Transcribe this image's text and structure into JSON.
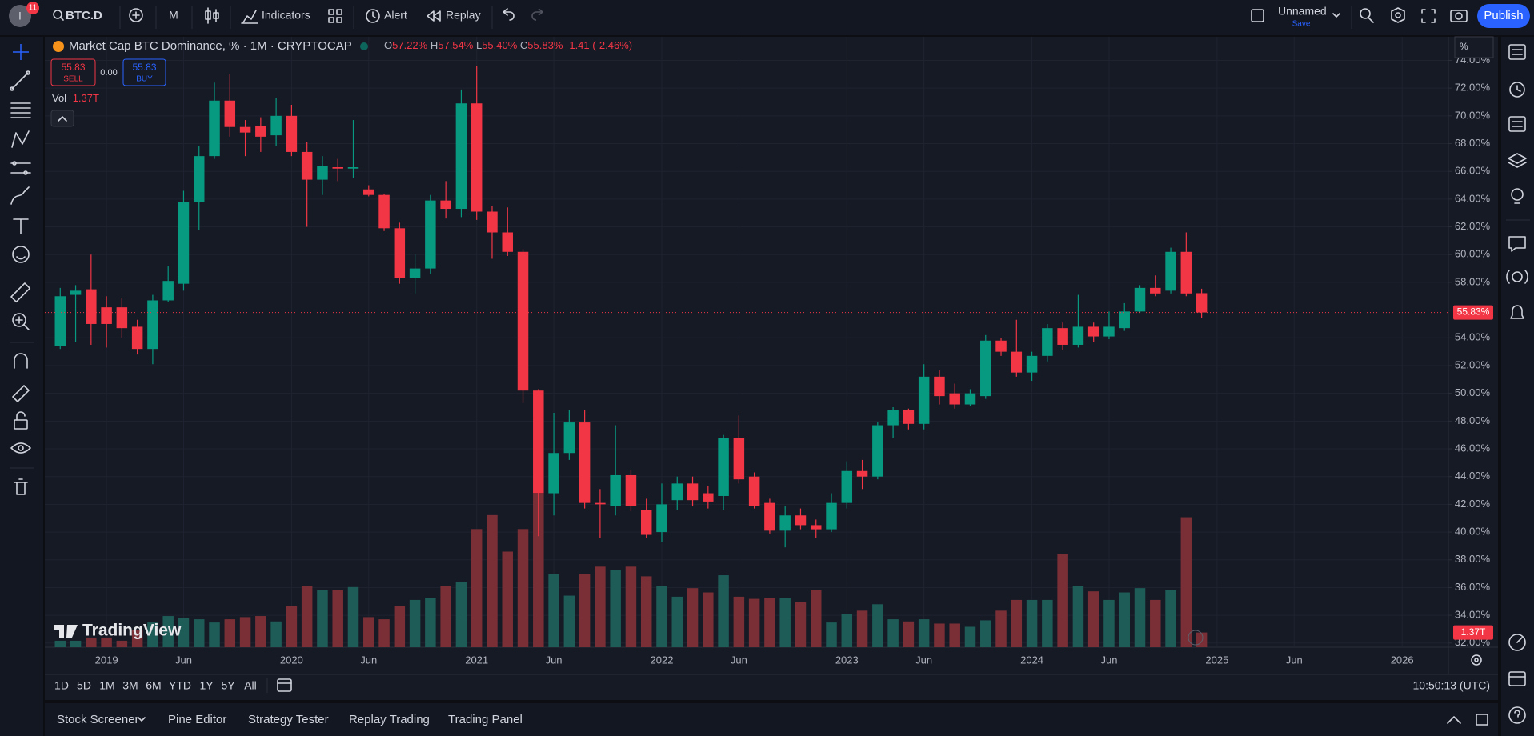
{
  "toolbar": {
    "avatar": "I",
    "notifications": "11",
    "symbol": "BTC.D",
    "interval": "M",
    "indicators": "Indicators",
    "alert": "Alert",
    "replay": "Replay",
    "layout_name": "Unnamed",
    "save": "Save",
    "publish": "Publish"
  },
  "legend": {
    "title": "Market Cap BTC Dominance, % · 1M · CRYPTOCAP",
    "ohlc_keys": [
      "O",
      "H",
      "L",
      "C"
    ],
    "ohlc_values": [
      "57.22%",
      "57.54%",
      "55.40%",
      "55.83%"
    ],
    "change": "-1.41 (-2.46%)"
  },
  "trade": {
    "sell_price": "55.83",
    "sell": "SELL",
    "spread": "0.00",
    "buy_price": "55.83",
    "buy": "BUY"
  },
  "volume_legend": "Vol",
  "scale_mode": "%",
  "watermark": "TradingView",
  "ranges": [
    "1D",
    "5D",
    "1M",
    "3M",
    "6M",
    "YTD",
    "1Y",
    "5Y",
    "All"
  ],
  "clock": "10:50:13 (UTC)",
  "bottom_tabs": [
    "Stock Screener",
    "Pine Editor",
    "Strategy Tester",
    "Replay Trading",
    "Trading Panel"
  ],
  "chart_data": {
    "type": "candlestick",
    "x": [
      "2018-10",
      "2018-11",
      "2018-12",
      "2019-01",
      "2019-02",
      "2019-03",
      "2019-04",
      "2019-05",
      "2019-06",
      "2019-07",
      "2019-08",
      "2019-09",
      "2019-10",
      "2019-11",
      "2019-12",
      "2020-01",
      "2020-02",
      "2020-03",
      "2020-04",
      "2020-05",
      "2020-06",
      "2020-07",
      "2020-08",
      "2020-09",
      "2020-10",
      "2020-11",
      "2020-12",
      "2021-01",
      "2021-02",
      "2021-03",
      "2021-04",
      "2021-05",
      "2021-06",
      "2021-07",
      "2021-08",
      "2021-09",
      "2021-10",
      "2021-11",
      "2021-12",
      "2022-01",
      "2022-02",
      "2022-03",
      "2022-04",
      "2022-05",
      "2022-06",
      "2022-07",
      "2022-08",
      "2022-09",
      "2022-10",
      "2022-11",
      "2022-12",
      "2023-01",
      "2023-02",
      "2023-03",
      "2023-04",
      "2023-05",
      "2023-06",
      "2023-07",
      "2023-08",
      "2023-09",
      "2023-10",
      "2023-11",
      "2023-12",
      "2024-01",
      "2024-02",
      "2024-03",
      "2024-04",
      "2024-05",
      "2024-06",
      "2024-07",
      "2024-08",
      "2024-09",
      "2024-10",
      "2024-11",
      "2024-12"
    ],
    "open": [
      53.4,
      57.1,
      57.5,
      56.2,
      56.2,
      54.8,
      53.2,
      56.7,
      57.9,
      63.8,
      67.1,
      71.1,
      69.2,
      69.3,
      68.6,
      70.0,
      67.4,
      65.4,
      66.3,
      66.2,
      64.7,
      64.3,
      61.9,
      58.3,
      59.0,
      63.9,
      63.3,
      70.9,
      63.1,
      61.6,
      60.2,
      50.2,
      42.8,
      45.7,
      47.9,
      42.1,
      41.9,
      44.1,
      41.6,
      40.0,
      42.3,
      43.5,
      42.8,
      42.6,
      46.8,
      44.0,
      42.1,
      40.1,
      41.2,
      40.5,
      40.2,
      42.1,
      44.4,
      44.0,
      47.7,
      48.8,
      47.8,
      51.2,
      50.0,
      49.2,
      49.8,
      53.8,
      53.0,
      51.5,
      52.7,
      54.7,
      53.5,
      54.8,
      54.1,
      54.7,
      55.9,
      57.6,
      57.4,
      60.2,
      57.22
    ],
    "high": [
      57.6,
      57.8,
      60.0,
      57.0,
      56.9,
      55.3,
      57.1,
      59.2,
      64.6,
      67.8,
      72.4,
      73.0,
      69.7,
      69.9,
      71.3,
      70.8,
      68.1,
      67.1,
      66.9,
      69.7,
      65.0,
      64.4,
      62.3,
      60.0,
      64.3,
      65.3,
      71.9,
      73.6,
      63.5,
      63.4,
      60.4,
      50.3,
      48.6,
      48.8,
      48.8,
      43.1,
      47.7,
      44.5,
      42.4,
      43.5,
      44.0,
      44.0,
      43.3,
      47.0,
      48.4,
      44.3,
      42.4,
      41.9,
      41.7,
      40.9,
      42.8,
      45.1,
      45.2,
      47.9,
      49.0,
      48.9,
      52.1,
      51.7,
      50.7,
      50.3,
      54.2,
      54.0,
      55.3,
      53.0,
      55.0,
      55.1,
      57.1,
      55.1,
      55.9,
      56.5,
      57.8,
      58.5,
      60.5,
      61.6,
      57.54
    ],
    "low": [
      53.2,
      53.7,
      53.5,
      53.3,
      54.0,
      52.8,
      52.1,
      56.6,
      57.4,
      61.8,
      66.9,
      68.5,
      67.1,
      67.4,
      67.8,
      67.1,
      62.0,
      64.3,
      65.3,
      65.5,
      64.2,
      61.7,
      57.9,
      57.2,
      58.6,
      62.6,
      62.7,
      62.5,
      59.7,
      59.9,
      49.3,
      39.7,
      41.2,
      45.2,
      41.7,
      39.6,
      41.2,
      41.5,
      39.6,
      39.3,
      41.6,
      41.9,
      41.7,
      41.6,
      43.5,
      41.7,
      39.9,
      38.9,
      40.2,
      39.6,
      40.0,
      41.7,
      43.1,
      43.8,
      46.8,
      47.4,
      47.4,
      49.2,
      48.9,
      49.1,
      49.6,
      52.7,
      51.2,
      50.9,
      52.3,
      53.1,
      53.3,
      53.7,
      53.9,
      54.5,
      55.8,
      57.0,
      57.2,
      57.0,
      55.4
    ],
    "close": [
      57.0,
      57.4,
      55.0,
      55.0,
      54.7,
      53.2,
      56.7,
      58.1,
      63.8,
      67.1,
      71.1,
      69.2,
      68.8,
      68.5,
      70.0,
      67.4,
      65.4,
      66.4,
      66.2,
      66.3,
      64.3,
      61.9,
      58.3,
      59.0,
      63.9,
      63.3,
      70.9,
      63.1,
      61.6,
      60.2,
      50.2,
      42.8,
      45.7,
      47.9,
      42.1,
      42.0,
      44.1,
      41.9,
      39.8,
      42.0,
      43.5,
      42.3,
      42.2,
      46.8,
      43.8,
      41.9,
      40.1,
      41.2,
      40.5,
      40.2,
      42.1,
      44.4,
      44.0,
      47.7,
      48.8,
      47.8,
      51.2,
      49.8,
      49.2,
      50.0,
      53.8,
      53.0,
      51.5,
      52.7,
      54.7,
      53.5,
      54.8,
      54.1,
      54.8,
      55.9,
      57.6,
      57.2,
      60.2,
      57.2,
      55.83
    ],
    "volume": [
      0.6,
      0.6,
      0.9,
      0.9,
      0.6,
      1.6,
      2.3,
      2.9,
      2.7,
      2.6,
      2.3,
      2.6,
      2.8,
      2.9,
      2.4,
      3.8,
      5.7,
      5.3,
      5.3,
      5.6,
      2.8,
      2.6,
      3.8,
      4.4,
      4.6,
      5.7,
      6.1,
      11.0,
      12.3,
      8.9,
      11.0,
      14.3,
      6.8,
      4.8,
      6.8,
      7.5,
      7.2,
      7.5,
      6.6,
      5.7,
      4.7,
      5.5,
      5.1,
      6.7,
      4.7,
      4.5,
      4.6,
      4.6,
      4.2,
      5.3,
      2.3,
      3.1,
      3.4,
      4.0,
      2.6,
      2.4,
      2.6,
      2.2,
      2.2,
      1.9,
      2.5,
      3.4,
      4.4,
      4.4,
      4.4,
      8.7,
      5.7,
      5.2,
      4.4,
      5.1,
      5.5,
      4.4,
      5.3,
      12.1,
      1.37
    ],
    "last_labels": {
      "close": "55.83%",
      "volume": "1.37T"
    },
    "up_color": "#089981",
    "down_color": "#f23645",
    "volume_up_color": "#1e5c58",
    "volume_down_color": "#7a2f36",
    "ylim": [
      31.7,
      75.7
    ],
    "yticks": [
      {
        "value": 32,
        "label": "32.00%"
      },
      {
        "value": 34,
        "label": "34.00%"
      },
      {
        "value": 36,
        "label": "36.00%"
      },
      {
        "value": 38,
        "label": "38.00%"
      },
      {
        "value": 40,
        "label": "40.00%"
      },
      {
        "value": 42,
        "label": "42.00%"
      },
      {
        "value": 44,
        "label": "44.00%"
      },
      {
        "value": 46,
        "label": "46.00%"
      },
      {
        "value": 48,
        "label": "48.00%"
      },
      {
        "value": 50,
        "label": "50.00%"
      },
      {
        "value": 52,
        "label": "52.00%"
      },
      {
        "value": 54,
        "label": "54.00%"
      },
      {
        "value": 56,
        "label": "56.00%"
      },
      {
        "value": 58,
        "label": "58.00%"
      },
      {
        "value": 60,
        "label": "60.00%"
      },
      {
        "value": 62,
        "label": "62.00%"
      },
      {
        "value": 64,
        "label": "64.00%"
      },
      {
        "value": 66,
        "label": "66.00%"
      },
      {
        "value": 68,
        "label": "68.00%"
      },
      {
        "value": 70,
        "label": "70.00%"
      },
      {
        "value": 72,
        "label": "72.00%"
      },
      {
        "value": 74,
        "label": "74.00%"
      }
    ],
    "xlim": [
      "2018-09",
      "2026-04"
    ],
    "xticks": [
      {
        "value": "2019-01",
        "label": "2019"
      },
      {
        "value": "2019-06",
        "label": "Jun"
      },
      {
        "value": "2020-01",
        "label": "2020"
      },
      {
        "value": "2020-06",
        "label": "Jun"
      },
      {
        "value": "2021-01",
        "label": "2021"
      },
      {
        "value": "2021-06",
        "label": "Jun"
      },
      {
        "value": "2022-01",
        "label": "2022"
      },
      {
        "value": "2022-06",
        "label": "Jun"
      },
      {
        "value": "2023-01",
        "label": "2023"
      },
      {
        "value": "2023-06",
        "label": "Jun"
      },
      {
        "value": "2024-01",
        "label": "2024"
      },
      {
        "value": "2024-06",
        "label": "Jun"
      },
      {
        "value": "2025-01",
        "label": "2025"
      },
      {
        "value": "2025-06",
        "label": "Jun"
      },
      {
        "value": "2026-01",
        "label": "2026"
      }
    ],
    "grid": true
  }
}
